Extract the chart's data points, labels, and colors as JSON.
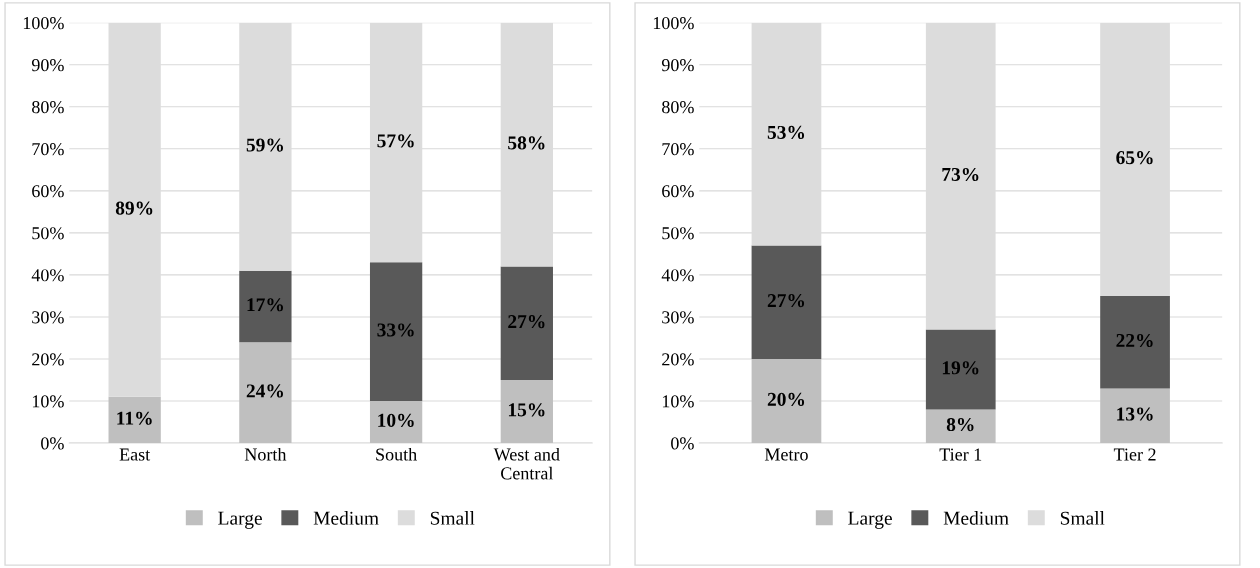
{
  "chart_data": [
    {
      "type": "bar",
      "stacked": true,
      "categories": [
        "East",
        "North",
        "South",
        "West and\nCentral"
      ],
      "ylim": [
        0,
        100
      ],
      "yticks": [
        {
          "value": 0,
          "label": "0%"
        },
        {
          "value": 10,
          "label": "10%"
        },
        {
          "value": 20,
          "label": "20%"
        },
        {
          "value": 30,
          "label": "30%"
        },
        {
          "value": 40,
          "label": "40%"
        },
        {
          "value": 50,
          "label": "50%"
        },
        {
          "value": 60,
          "label": "60%"
        },
        {
          "value": 70,
          "label": "70%"
        },
        {
          "value": 80,
          "label": "80%"
        },
        {
          "value": 90,
          "label": "90%"
        },
        {
          "value": 100,
          "label": "100%"
        }
      ],
      "grid": "y",
      "legend": "bottom",
      "series": [
        {
          "name": "Large",
          "color": "#bfbfbf",
          "values": [
            11,
            24,
            10,
            15
          ],
          "value_labels": [
            "11%",
            "24%",
            "10%",
            "15%"
          ]
        },
        {
          "name": "Medium",
          "color": "#595959",
          "values": [
            0,
            17,
            33,
            27
          ],
          "value_labels": [
            null,
            "17%",
            "33%",
            "27%"
          ]
        },
        {
          "name": "Small",
          "color": "#dcdcdc",
          "values": [
            89,
            59,
            57,
            58
          ],
          "value_labels": [
            "89%",
            "59%",
            "57%",
            "58%"
          ]
        }
      ]
    },
    {
      "type": "bar",
      "stacked": true,
      "categories": [
        "Metro",
        "Tier 1",
        "Tier 2"
      ],
      "ylim": [
        0,
        100
      ],
      "yticks": [
        {
          "value": 0,
          "label": "0%"
        },
        {
          "value": 10,
          "label": "10%"
        },
        {
          "value": 20,
          "label": "20%"
        },
        {
          "value": 30,
          "label": "30%"
        },
        {
          "value": 40,
          "label": "40%"
        },
        {
          "value": 50,
          "label": "50%"
        },
        {
          "value": 60,
          "label": "60%"
        },
        {
          "value": 70,
          "label": "70%"
        },
        {
          "value": 80,
          "label": "80%"
        },
        {
          "value": 90,
          "label": "90%"
        },
        {
          "value": 100,
          "label": "100%"
        }
      ],
      "grid": "y",
      "legend": "bottom",
      "series": [
        {
          "name": "Large",
          "color": "#bfbfbf",
          "values": [
            20,
            8,
            13
          ],
          "value_labels": [
            "20%",
            "8%",
            "13%"
          ]
        },
        {
          "name": "Medium",
          "color": "#595959",
          "values": [
            27,
            19,
            22
          ],
          "value_labels": [
            "27%",
            "19%",
            "22%"
          ]
        },
        {
          "name": "Small",
          "color": "#dcdcdc",
          "values": [
            53,
            73,
            65
          ],
          "value_labels": [
            "53%",
            "73%",
            "65%"
          ]
        }
      ]
    }
  ]
}
